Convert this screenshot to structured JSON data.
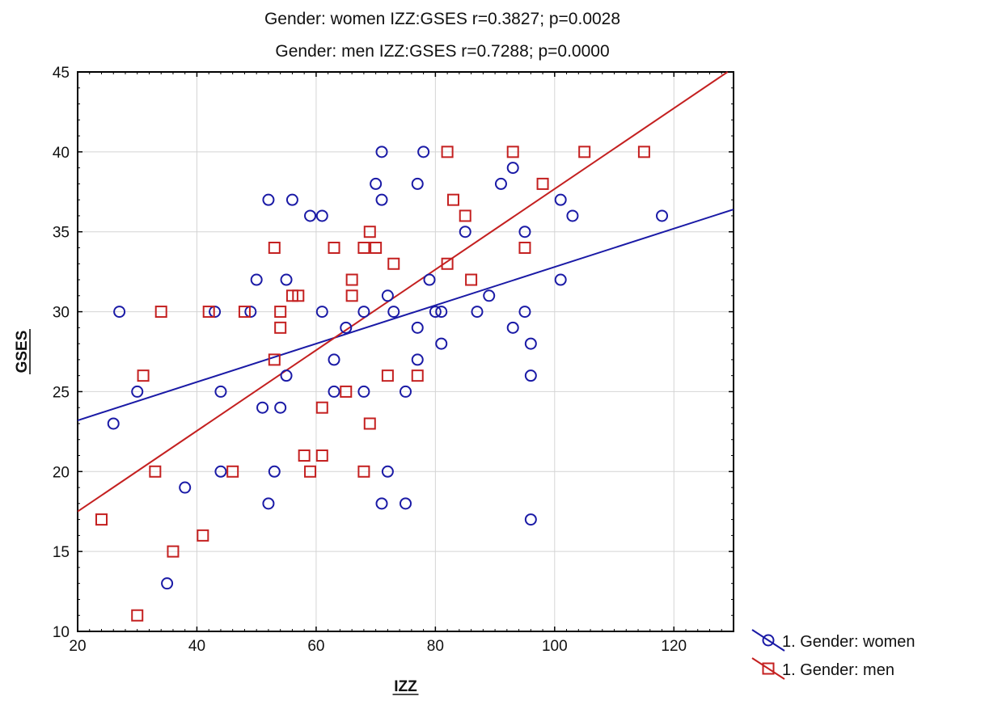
{
  "chart_data": {
    "type": "scatter",
    "title_lines": [
      "Gender: women IZZ:GSES r=0.3827; p=0.0028",
      "Gender: men IZZ:GSES r=0.7288; p=0.0000"
    ],
    "xlabel": "IZZ",
    "ylabel": "GSES",
    "xlim": [
      20,
      130
    ],
    "ylim": [
      10,
      45
    ],
    "x_ticks": [
      20,
      40,
      60,
      80,
      100,
      120
    ],
    "y_ticks": [
      10,
      15,
      20,
      25,
      30,
      35,
      40,
      45
    ],
    "grid": true,
    "legend_position": "bottom-right outside",
    "series": [
      {
        "name": "1. Gender: women",
        "marker": "circle",
        "color": "#1a1aa6",
        "fit_line": {
          "x": [
            20,
            130
          ],
          "y": [
            23.2,
            36.4
          ]
        },
        "points": [
          [
            26,
            23
          ],
          [
            27,
            30
          ],
          [
            30,
            25
          ],
          [
            35,
            13
          ],
          [
            38,
            19
          ],
          [
            43,
            30
          ],
          [
            44,
            25
          ],
          [
            44,
            20
          ],
          [
            49,
            30
          ],
          [
            50,
            32
          ],
          [
            51,
            24
          ],
          [
            52,
            37
          ],
          [
            52,
            18
          ],
          [
            53,
            20
          ],
          [
            54,
            24
          ],
          [
            55,
            32
          ],
          [
            55,
            26
          ],
          [
            56,
            37
          ],
          [
            59,
            36
          ],
          [
            61,
            36
          ],
          [
            61,
            30
          ],
          [
            63,
            27
          ],
          [
            63,
            25
          ],
          [
            65,
            29
          ],
          [
            68,
            30
          ],
          [
            68,
            25
          ],
          [
            70,
            38
          ],
          [
            71,
            40
          ],
          [
            71,
            37
          ],
          [
            71,
            18
          ],
          [
            72,
            31
          ],
          [
            72,
            20
          ],
          [
            73,
            30
          ],
          [
            75,
            25
          ],
          [
            75,
            18
          ],
          [
            77,
            38
          ],
          [
            77,
            29
          ],
          [
            77,
            27
          ],
          [
            78,
            40
          ],
          [
            79,
            32
          ],
          [
            80,
            30
          ],
          [
            81,
            30
          ],
          [
            81,
            28
          ],
          [
            85,
            35
          ],
          [
            87,
            30
          ],
          [
            89,
            31
          ],
          [
            91,
            38
          ],
          [
            93,
            39
          ],
          [
            93,
            29
          ],
          [
            95,
            35
          ],
          [
            95,
            30
          ],
          [
            96,
            28
          ],
          [
            96,
            26
          ],
          [
            96,
            17
          ],
          [
            101,
            37
          ],
          [
            101,
            32
          ],
          [
            103,
            36
          ],
          [
            118,
            36
          ]
        ]
      },
      {
        "name": "1. Gender: men",
        "marker": "square",
        "color": "#c42020",
        "fit_line": {
          "x": [
            20,
            129
          ],
          "y": [
            17.5,
            45
          ]
        },
        "points": [
          [
            24,
            17
          ],
          [
            30,
            11
          ],
          [
            31,
            26
          ],
          [
            33,
            20
          ],
          [
            34,
            30
          ],
          [
            36,
            15
          ],
          [
            41,
            16
          ],
          [
            42,
            30
          ],
          [
            46,
            20
          ],
          [
            48,
            30
          ],
          [
            53,
            34
          ],
          [
            53,
            27
          ],
          [
            54,
            30
          ],
          [
            54,
            29
          ],
          [
            56,
            31
          ],
          [
            57,
            31
          ],
          [
            58,
            21
          ],
          [
            59,
            20
          ],
          [
            61,
            24
          ],
          [
            61,
            21
          ],
          [
            63,
            34
          ],
          [
            65,
            25
          ],
          [
            66,
            32
          ],
          [
            66,
            31
          ],
          [
            68,
            34
          ],
          [
            68,
            20
          ],
          [
            69,
            35
          ],
          [
            69,
            23
          ],
          [
            70,
            34
          ],
          [
            72,
            26
          ],
          [
            73,
            33
          ],
          [
            77,
            26
          ],
          [
            82,
            40
          ],
          [
            82,
            33
          ],
          [
            83,
            37
          ],
          [
            85,
            36
          ],
          [
            86,
            32
          ],
          [
            93,
            40
          ],
          [
            95,
            34
          ],
          [
            98,
            38
          ],
          [
            105,
            40
          ],
          [
            115,
            40
          ]
        ]
      }
    ]
  }
}
